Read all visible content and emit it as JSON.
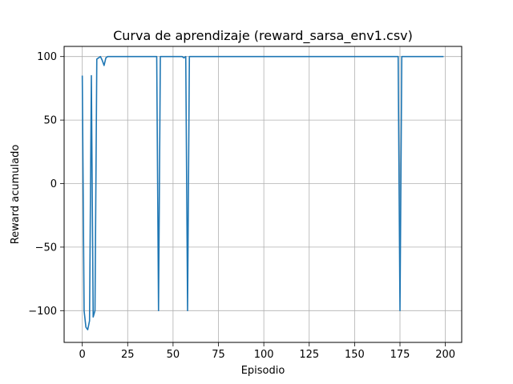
{
  "chart_data": {
    "type": "line",
    "title": "Curva de aprendizaje (reward_sarsa_env1.csv)",
    "xlabel": "Episodio",
    "ylabel": "Reward acumulado",
    "xlim": [
      -10,
      209
    ],
    "ylim": [
      -125,
      108
    ],
    "xticks": [
      0,
      25,
      50,
      75,
      100,
      125,
      150,
      175,
      200
    ],
    "yticks": [
      -100,
      -50,
      0,
      50,
      100
    ],
    "xtick_labels": [
      "0",
      "25",
      "50",
      "75",
      "100",
      "125",
      "150",
      "175",
      "200"
    ],
    "ytick_labels": [
      "−100",
      "−50",
      "0",
      "50",
      "100"
    ],
    "grid": true,
    "series": [
      {
        "color": "#1f77b4",
        "x": [
          0,
          1,
          2,
          3,
          4,
          5,
          6,
          7,
          8,
          9,
          10,
          11,
          12,
          13,
          14,
          15,
          20,
          25,
          30,
          35,
          40,
          41,
          42,
          43,
          44,
          45,
          50,
          55,
          56,
          57,
          58,
          59,
          60,
          70,
          80,
          90,
          100,
          110,
          120,
          130,
          140,
          150,
          160,
          170,
          174,
          175,
          176,
          177,
          180,
          185,
          190,
          195,
          199
        ],
        "y": [
          85,
          -100,
          -113,
          -115,
          -108,
          85,
          -105,
          -100,
          98,
          99,
          100,
          97,
          93,
          99,
          100,
          100,
          100,
          100,
          100,
          100,
          100,
          100,
          -100,
          100,
          100,
          100,
          100,
          100,
          99,
          100,
          -100,
          100,
          100,
          100,
          100,
          100,
          100,
          100,
          100,
          100,
          100,
          100,
          100,
          100,
          100,
          -100,
          100,
          100,
          100,
          100,
          100,
          100,
          100
        ]
      }
    ]
  }
}
